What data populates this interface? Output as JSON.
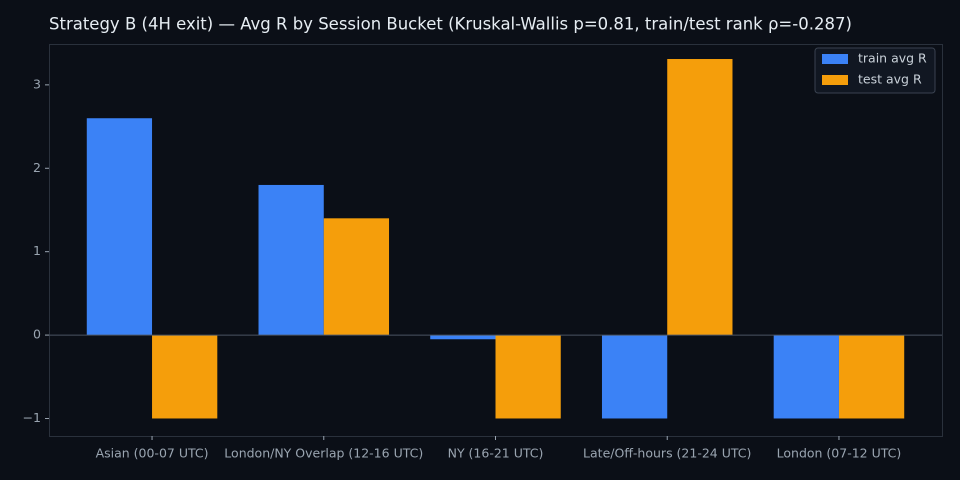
{
  "chart_data": {
    "type": "bar",
    "title": "Strategy B (4H exit) — Avg R by Session Bucket (Kruskal-Wallis p=0.81, train/test rank ρ=-0.287)",
    "categories": [
      "Asian (00-07 UTC)",
      "London/NY Overlap (12-16 UTC)",
      "NY (16-21 UTC)",
      "Late/Off-hours (21-24 UTC)",
      "London (07-12 UTC)"
    ],
    "series": [
      {
        "name": "train avg R",
        "color": "#3b82f6",
        "values": [
          2.6,
          1.8,
          -0.05,
          -1,
          -1
        ]
      },
      {
        "name": "test avg R",
        "color": "#f59e0b",
        "values": [
          -1,
          1.4,
          -1,
          3.31,
          -1
        ]
      }
    ],
    "ylim": [
      -1.21,
      3.49
    ],
    "yticks": [
      {
        "value": -1,
        "label": "−1"
      },
      0,
      1,
      2,
      3
    ],
    "legend": "upper right"
  }
}
